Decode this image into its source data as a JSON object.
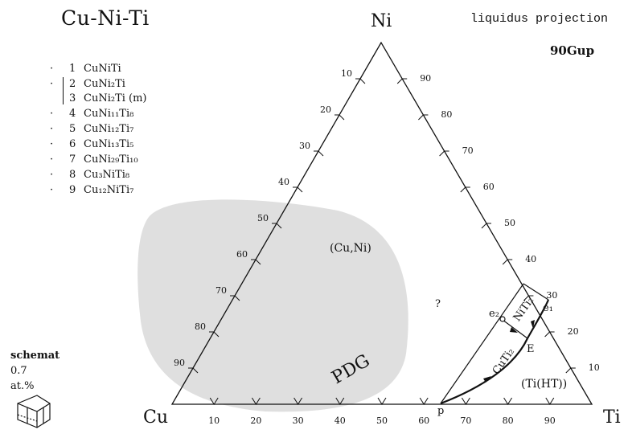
{
  "title": "Cu-Ni-Ti",
  "projection_label": "liquidus projection",
  "reference": "90Gup",
  "vertices": {
    "top": "Ni",
    "left": "Cu",
    "right": "Ti"
  },
  "legend": [
    {
      "num": "1",
      "formula": "CuNiTi"
    },
    {
      "num": "2",
      "formula": "CuNi₂Ti"
    },
    {
      "num": "3",
      "formula": "CuNi₂Ti (m)"
    },
    {
      "num": "4",
      "formula": "CuNi₁₁Ti₈"
    },
    {
      "num": "5",
      "formula": "CuNi₁₂Ti₇"
    },
    {
      "num": "6",
      "formula": "CuNi₁₃Ti₅"
    },
    {
      "num": "7",
      "formula": "CuNi₂₉Ti₁₀"
    },
    {
      "num": "8",
      "formula": "Cu₃NiTi₈"
    },
    {
      "num": "9",
      "formula": "Cu₁₂NiTi₇"
    }
  ],
  "legend_dot": "·",
  "schematic": {
    "label": "schemat",
    "value": "0.7",
    "unit": "at.%"
  },
  "axis_ticks": {
    "left_edge": [
      "10",
      "20",
      "30",
      "40",
      "50",
      "60",
      "70",
      "80",
      "90"
    ],
    "right_edge": [
      "90",
      "80",
      "70",
      "60",
      "50",
      "40",
      "30",
      "20",
      "10"
    ],
    "bottom_edge": [
      "10",
      "20",
      "30",
      "40",
      "50",
      "60",
      "70",
      "80",
      "90"
    ]
  },
  "regions": {
    "cu_ni": "(Cu,Ni)",
    "unknown": "?",
    "ti_ht": "(Ti(HT))",
    "niti2": "NiTi₂",
    "cuti2": "CuTi₂"
  },
  "points": {
    "e2": "e₂",
    "e1": "e₁",
    "E": "E",
    "p": "p"
  },
  "watermark_text": "PDG",
  "colors": {
    "ink": "#111111",
    "watermark": "#d4d4d4"
  }
}
